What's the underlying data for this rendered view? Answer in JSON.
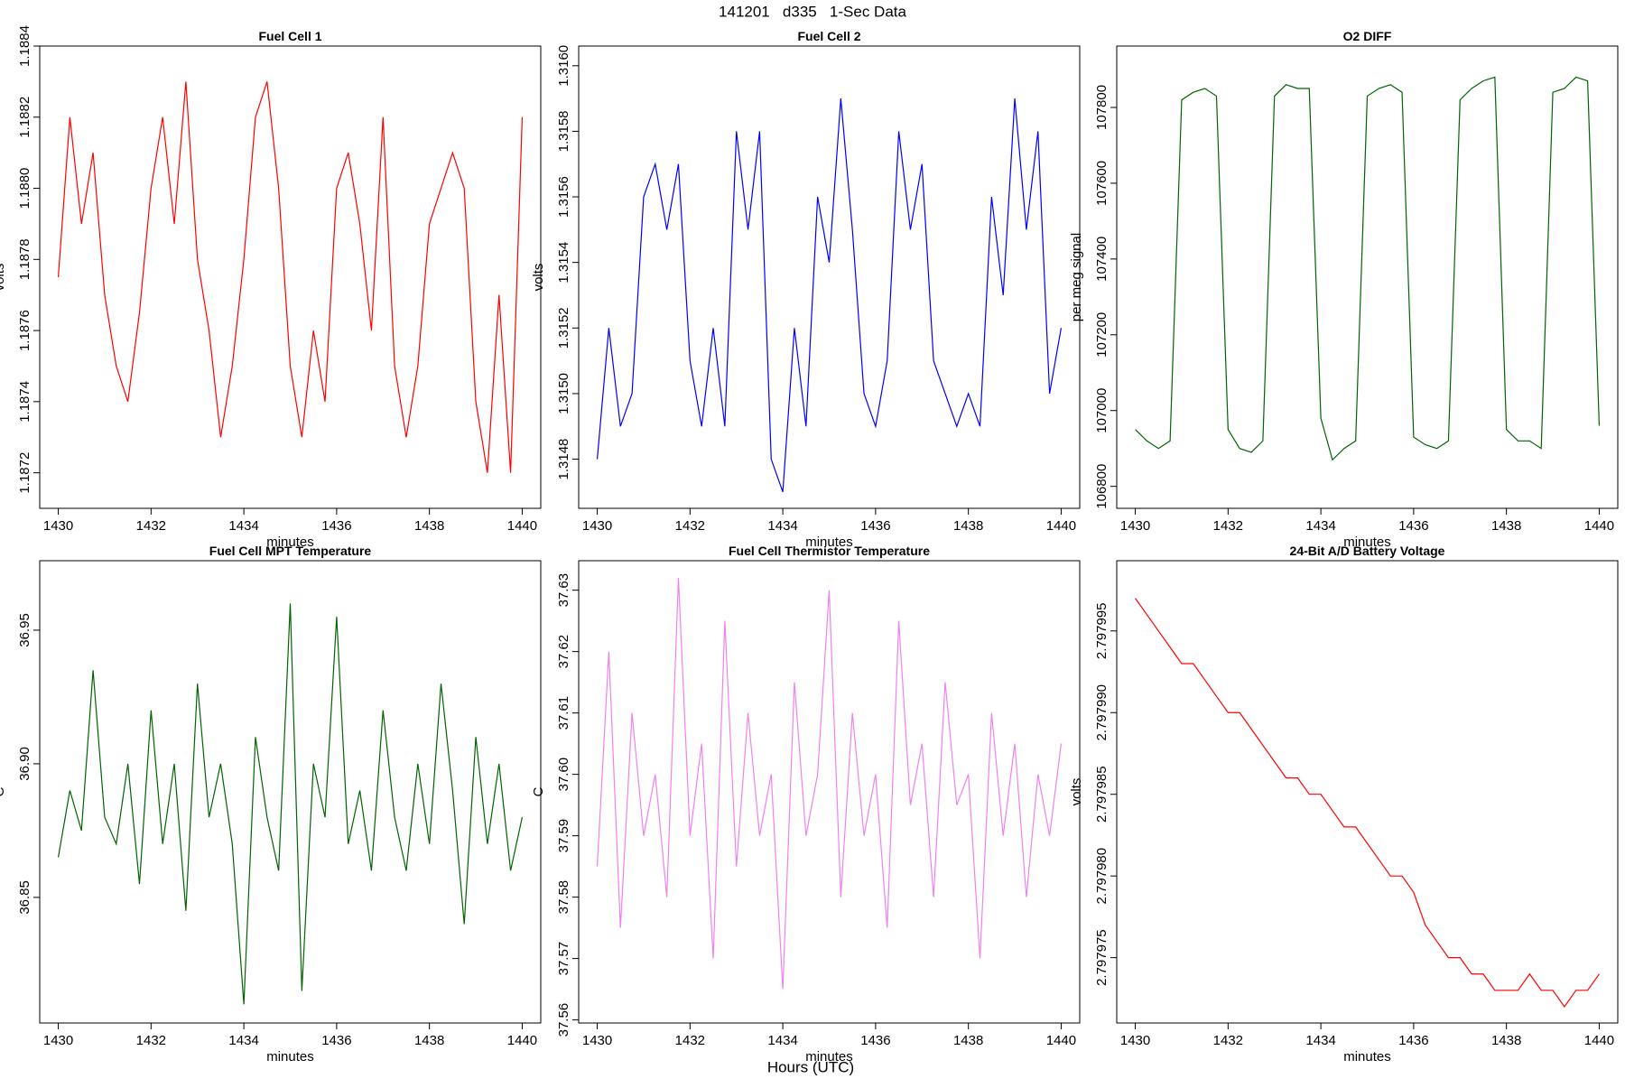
{
  "title": "141201   d335   1-Sec Data",
  "xlabel": "Hours (UTC)",
  "chart_data": [
    {
      "type": "line",
      "title": "Fuel Cell 1",
      "xlabel": "minutes",
      "ylabel": "volts",
      "x": [
        1430,
        1430.25,
        1430.5,
        1430.75,
        1431,
        1431.25,
        1431.5,
        1431.75,
        1432,
        1432.25,
        1432.5,
        1432.75,
        1433,
        1433.25,
        1433.5,
        1433.75,
        1434,
        1434.25,
        1434.5,
        1434.75,
        1435,
        1435.25,
        1435.5,
        1435.75,
        1436,
        1436.25,
        1436.5,
        1436.75,
        1437,
        1437.25,
        1437.5,
        1437.75,
        1438,
        1438.25,
        1438.5,
        1438.75,
        1439,
        1439.25,
        1439.5,
        1439.75,
        1440
      ],
      "series": [
        {
          "color": "#ff0000",
          "values": [
            1.18775,
            1.1882,
            1.1879,
            1.1881,
            1.1877,
            1.1875,
            1.1874,
            1.18765,
            1.188,
            1.1882,
            1.1879,
            1.1883,
            1.1878,
            1.1876,
            1.1873,
            1.1875,
            1.1878,
            1.1882,
            1.1883,
            1.188,
            1.1875,
            1.1873,
            1.1876,
            1.1874,
            1.188,
            1.1881,
            1.1879,
            1.1876,
            1.1882,
            1.1875,
            1.1873,
            1.1875,
            1.1879,
            1.188,
            1.1881,
            1.188,
            1.1874,
            1.1872,
            1.1877,
            1.1872,
            1.1882
          ]
        }
      ],
      "xlim": [
        1429.6,
        1440.4
      ],
      "xticks": [
        1430,
        1432,
        1434,
        1436,
        1438,
        1440
      ],
      "ylim": [
        1.1871,
        1.1884
      ],
      "yticks": [
        {
          "value": 1.1872,
          "label": "1.1872"
        },
        {
          "value": 1.1874,
          "label": "1.1874"
        },
        {
          "value": 1.1876,
          "label": "1.1876"
        },
        {
          "value": 1.1878,
          "label": "1.1878"
        },
        {
          "value": 1.188,
          "label": "1.1880"
        },
        {
          "value": 1.1882,
          "label": "1.1882"
        },
        {
          "value": 1.1884,
          "label": "1.1884"
        }
      ]
    },
    {
      "type": "line",
      "title": "Fuel Cell 2",
      "xlabel": "minutes",
      "ylabel": "volts",
      "x": [
        1430,
        1430.25,
        1430.5,
        1430.75,
        1431,
        1431.25,
        1431.5,
        1431.75,
        1432,
        1432.25,
        1432.5,
        1432.75,
        1433,
        1433.25,
        1433.5,
        1433.75,
        1434,
        1434.25,
        1434.5,
        1434.75,
        1435,
        1435.25,
        1435.5,
        1435.75,
        1436,
        1436.25,
        1436.5,
        1436.75,
        1437,
        1437.25,
        1437.5,
        1437.75,
        1438,
        1438.25,
        1438.5,
        1438.75,
        1439,
        1439.25,
        1439.5,
        1439.75,
        1440
      ],
      "series": [
        {
          "color": "#0000ff",
          "values": [
            1.3148,
            1.3152,
            1.3149,
            1.315,
            1.3156,
            1.3157,
            1.3155,
            1.3157,
            1.3151,
            1.3149,
            1.3152,
            1.3149,
            1.3158,
            1.3155,
            1.3158,
            1.3148,
            1.3147,
            1.3152,
            1.3149,
            1.3156,
            1.3154,
            1.3159,
            1.3155,
            1.315,
            1.3149,
            1.3151,
            1.3158,
            1.3155,
            1.3157,
            1.3151,
            1.315,
            1.3149,
            1.315,
            1.3149,
            1.3156,
            1.3153,
            1.3159,
            1.3155,
            1.3158,
            1.315,
            1.3152
          ]
        }
      ],
      "xlim": [
        1429.6,
        1440.4
      ],
      "xticks": [
        1430,
        1432,
        1434,
        1436,
        1438,
        1440
      ],
      "ylim": [
        1.31465,
        1.31606
      ],
      "yticks": [
        {
          "value": 1.3148,
          "label": "1.3148"
        },
        {
          "value": 1.315,
          "label": "1.3150"
        },
        {
          "value": 1.3152,
          "label": "1.3152"
        },
        {
          "value": 1.3154,
          "label": "1.3154"
        },
        {
          "value": 1.3156,
          "label": "1.3156"
        },
        {
          "value": 1.3158,
          "label": "1.3158"
        },
        {
          "value": 1.316,
          "label": "1.3160"
        }
      ]
    },
    {
      "type": "line",
      "title": "O2 DIFF",
      "xlabel": "minutes",
      "ylabel": "per meg signal",
      "x": [
        1430,
        1430.25,
        1430.5,
        1430.75,
        1431,
        1431.25,
        1431.5,
        1431.75,
        1432,
        1432.25,
        1432.5,
        1432.75,
        1433,
        1433.25,
        1433.5,
        1433.75,
        1434,
        1434.25,
        1434.5,
        1434.75,
        1435,
        1435.25,
        1435.5,
        1435.75,
        1436,
        1436.25,
        1436.5,
        1436.75,
        1437,
        1437.25,
        1437.5,
        1437.75,
        1438,
        1438.25,
        1438.5,
        1438.75,
        1439,
        1439.25,
        1439.5,
        1439.75,
        1440
      ],
      "series": [
        {
          "color": "#006400",
          "values": [
            106950,
            106920,
            106900,
            106920,
            107820,
            107840,
            107850,
            107830,
            106950,
            106900,
            106890,
            106920,
            107830,
            107860,
            107850,
            107850,
            106980,
            106870,
            106900,
            106920,
            107830,
            107850,
            107860,
            107840,
            106930,
            106910,
            106900,
            106920,
            107820,
            107850,
            107870,
            107880,
            106950,
            106920,
            106920,
            106900,
            107840,
            107850,
            107880,
            107870,
            106960
          ]
        }
      ],
      "xlim": [
        1429.6,
        1440.4
      ],
      "xticks": [
        1430,
        1432,
        1434,
        1436,
        1438,
        1440
      ],
      "ylim": [
        106742,
        107962
      ],
      "yticks": [
        106800,
        107000,
        107200,
        107400,
        107600,
        107800
      ]
    },
    {
      "type": "line",
      "title": "Fuel Cell MPT Temperature",
      "xlabel": "minutes",
      "ylabel": "C",
      "x": [
        1430,
        1430.25,
        1430.5,
        1430.75,
        1431,
        1431.25,
        1431.5,
        1431.75,
        1432,
        1432.25,
        1432.5,
        1432.75,
        1433,
        1433.25,
        1433.5,
        1433.75,
        1434,
        1434.25,
        1434.5,
        1434.75,
        1435,
        1435.25,
        1435.5,
        1435.75,
        1436,
        1436.25,
        1436.5,
        1436.75,
        1437,
        1437.25,
        1437.5,
        1437.75,
        1438,
        1438.25,
        1438.5,
        1438.75,
        1439,
        1439.25,
        1439.5,
        1439.75,
        1440
      ],
      "series": [
        {
          "color": "#006400",
          "values": [
            36.865,
            36.89,
            36.875,
            36.935,
            36.88,
            36.87,
            36.9,
            36.855,
            36.92,
            36.87,
            36.9,
            36.845,
            36.93,
            36.88,
            36.9,
            36.87,
            36.81,
            36.91,
            36.88,
            36.86,
            36.96,
            36.815,
            36.9,
            36.88,
            36.955,
            36.87,
            36.89,
            36.86,
            36.92,
            36.88,
            36.86,
            36.9,
            36.87,
            36.93,
            36.89,
            36.84,
            36.91,
            36.87,
            36.9,
            36.86,
            36.88
          ]
        }
      ],
      "xlim": [
        1429.6,
        1440.4
      ],
      "xticks": [
        1430,
        1432,
        1434,
        1436,
        1438,
        1440
      ],
      "ylim": [
        36.803,
        36.976
      ],
      "yticks": [
        {
          "value": 36.85,
          "label": "36.85"
        },
        {
          "value": 36.9,
          "label": "36.90"
        },
        {
          "value": 36.95,
          "label": "36.95"
        }
      ]
    },
    {
      "type": "line",
      "title": "Fuel Cell Thermistor Temperature",
      "xlabel": "minutes",
      "ylabel": "C",
      "x": [
        1430,
        1430.25,
        1430.5,
        1430.75,
        1431,
        1431.25,
        1431.5,
        1431.75,
        1432,
        1432.25,
        1432.5,
        1432.75,
        1433,
        1433.25,
        1433.5,
        1433.75,
        1434,
        1434.25,
        1434.5,
        1434.75,
        1435,
        1435.25,
        1435.5,
        1435.75,
        1436,
        1436.25,
        1436.5,
        1436.75,
        1437,
        1437.25,
        1437.5,
        1437.75,
        1438,
        1438.25,
        1438.5,
        1438.75,
        1439,
        1439.25,
        1439.5,
        1439.75,
        1440
      ],
      "series": [
        {
          "color": "#ee82ee",
          "values": [
            37.585,
            37.62,
            37.575,
            37.61,
            37.59,
            37.6,
            37.58,
            37.632,
            37.59,
            37.605,
            37.57,
            37.625,
            37.585,
            37.61,
            37.59,
            37.6,
            37.565,
            37.615,
            37.59,
            37.6,
            37.63,
            37.58,
            37.61,
            37.59,
            37.6,
            37.575,
            37.625,
            37.595,
            37.605,
            37.58,
            37.615,
            37.595,
            37.6,
            37.57,
            37.61,
            37.59,
            37.605,
            37.58,
            37.6,
            37.59,
            37.605
          ]
        }
      ],
      "xlim": [
        1429.6,
        1440.4
      ],
      "xticks": [
        1430,
        1432,
        1434,
        1436,
        1438,
        1440
      ],
      "ylim": [
        37.5595,
        37.6348
      ],
      "yticks": [
        37.56,
        37.57,
        37.58,
        37.59,
        {
          "value": 37.6,
          "label": "37.60"
        },
        37.61,
        37.62,
        37.63
      ]
    },
    {
      "type": "line",
      "title": "24-Bit A/D Battery Voltage",
      "xlabel": "minutes",
      "ylabel": "volts",
      "x": [
        1430,
        1430.25,
        1430.5,
        1430.75,
        1431,
        1431.25,
        1431.5,
        1431.75,
        1432,
        1432.25,
        1432.5,
        1432.75,
        1433,
        1433.25,
        1433.5,
        1433.75,
        1434,
        1434.25,
        1434.5,
        1434.75,
        1435,
        1435.25,
        1435.5,
        1435.75,
        1436,
        1436.25,
        1436.5,
        1436.75,
        1437,
        1437.25,
        1437.5,
        1437.75,
        1438,
        1438.25,
        1438.5,
        1438.75,
        1439,
        1439.25,
        1439.5,
        1439.75,
        1440
      ],
      "series": [
        {
          "color": "#ff0000",
          "values": [
            2.797997,
            2.797996,
            2.797995,
            2.797994,
            2.797993,
            2.797993,
            2.797992,
            2.797991,
            2.79799,
            2.79799,
            2.797989,
            2.797988,
            2.797987,
            2.797986,
            2.797986,
            2.797985,
            2.797985,
            2.797984,
            2.797983,
            2.797983,
            2.797982,
            2.797981,
            2.79798,
            2.79798,
            2.797979,
            2.797977,
            2.797976,
            2.797975,
            2.797975,
            2.797974,
            2.797974,
            2.797973,
            2.797973,
            2.797973,
            2.797974,
            2.797973,
            2.797973,
            2.797972,
            2.797973,
            2.797973,
            2.797974
          ]
        }
      ],
      "xlim": [
        1429.6,
        1440.4
      ],
      "xticks": [
        1430,
        1432,
        1434,
        1436,
        1438,
        1440
      ],
      "ylim": [
        2.797971,
        2.7979993
      ],
      "yticks": [
        2.797975,
        {
          "value": 2.79798,
          "label": "2.797980"
        },
        2.797985,
        {
          "value": 2.79799,
          "label": "2.797990"
        },
        2.797995
      ]
    }
  ]
}
